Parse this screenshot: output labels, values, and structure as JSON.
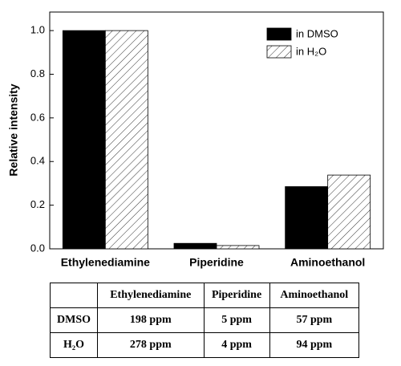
{
  "chart_data": {
    "type": "bar",
    "y_label": "Relative intensity",
    "categories": [
      "Ethylenediamine",
      "Piperidine",
      "Aminoethanol"
    ],
    "series": [
      {
        "name": "in DMSO",
        "color": "#000000",
        "values": [
          1.0,
          0.025,
          0.285
        ]
      },
      {
        "name": "in H₂O",
        "color": "#ffffff",
        "hatch": true,
        "values": [
          1.0,
          0.015,
          0.338
        ]
      }
    ],
    "ylim": [
      0,
      1.085
    ],
    "yticks": [
      {
        "value": 0,
        "label": "0.0"
      },
      0.2,
      0.4,
      0.6,
      0.8,
      {
        "value": 1,
        "label": "1.0"
      }
    ],
    "legend": "upper right"
  },
  "table": {
    "columns": [
      "Ethylenediamine",
      "Piperidine",
      "Aminoethanol"
    ],
    "rows": [
      [
        "DMSO",
        "198 ppm",
        "5 ppm",
        "57 ppm"
      ],
      [
        "H₂O",
        "278 ppm",
        "4 ppm",
        "94 ppm"
      ]
    ]
  }
}
